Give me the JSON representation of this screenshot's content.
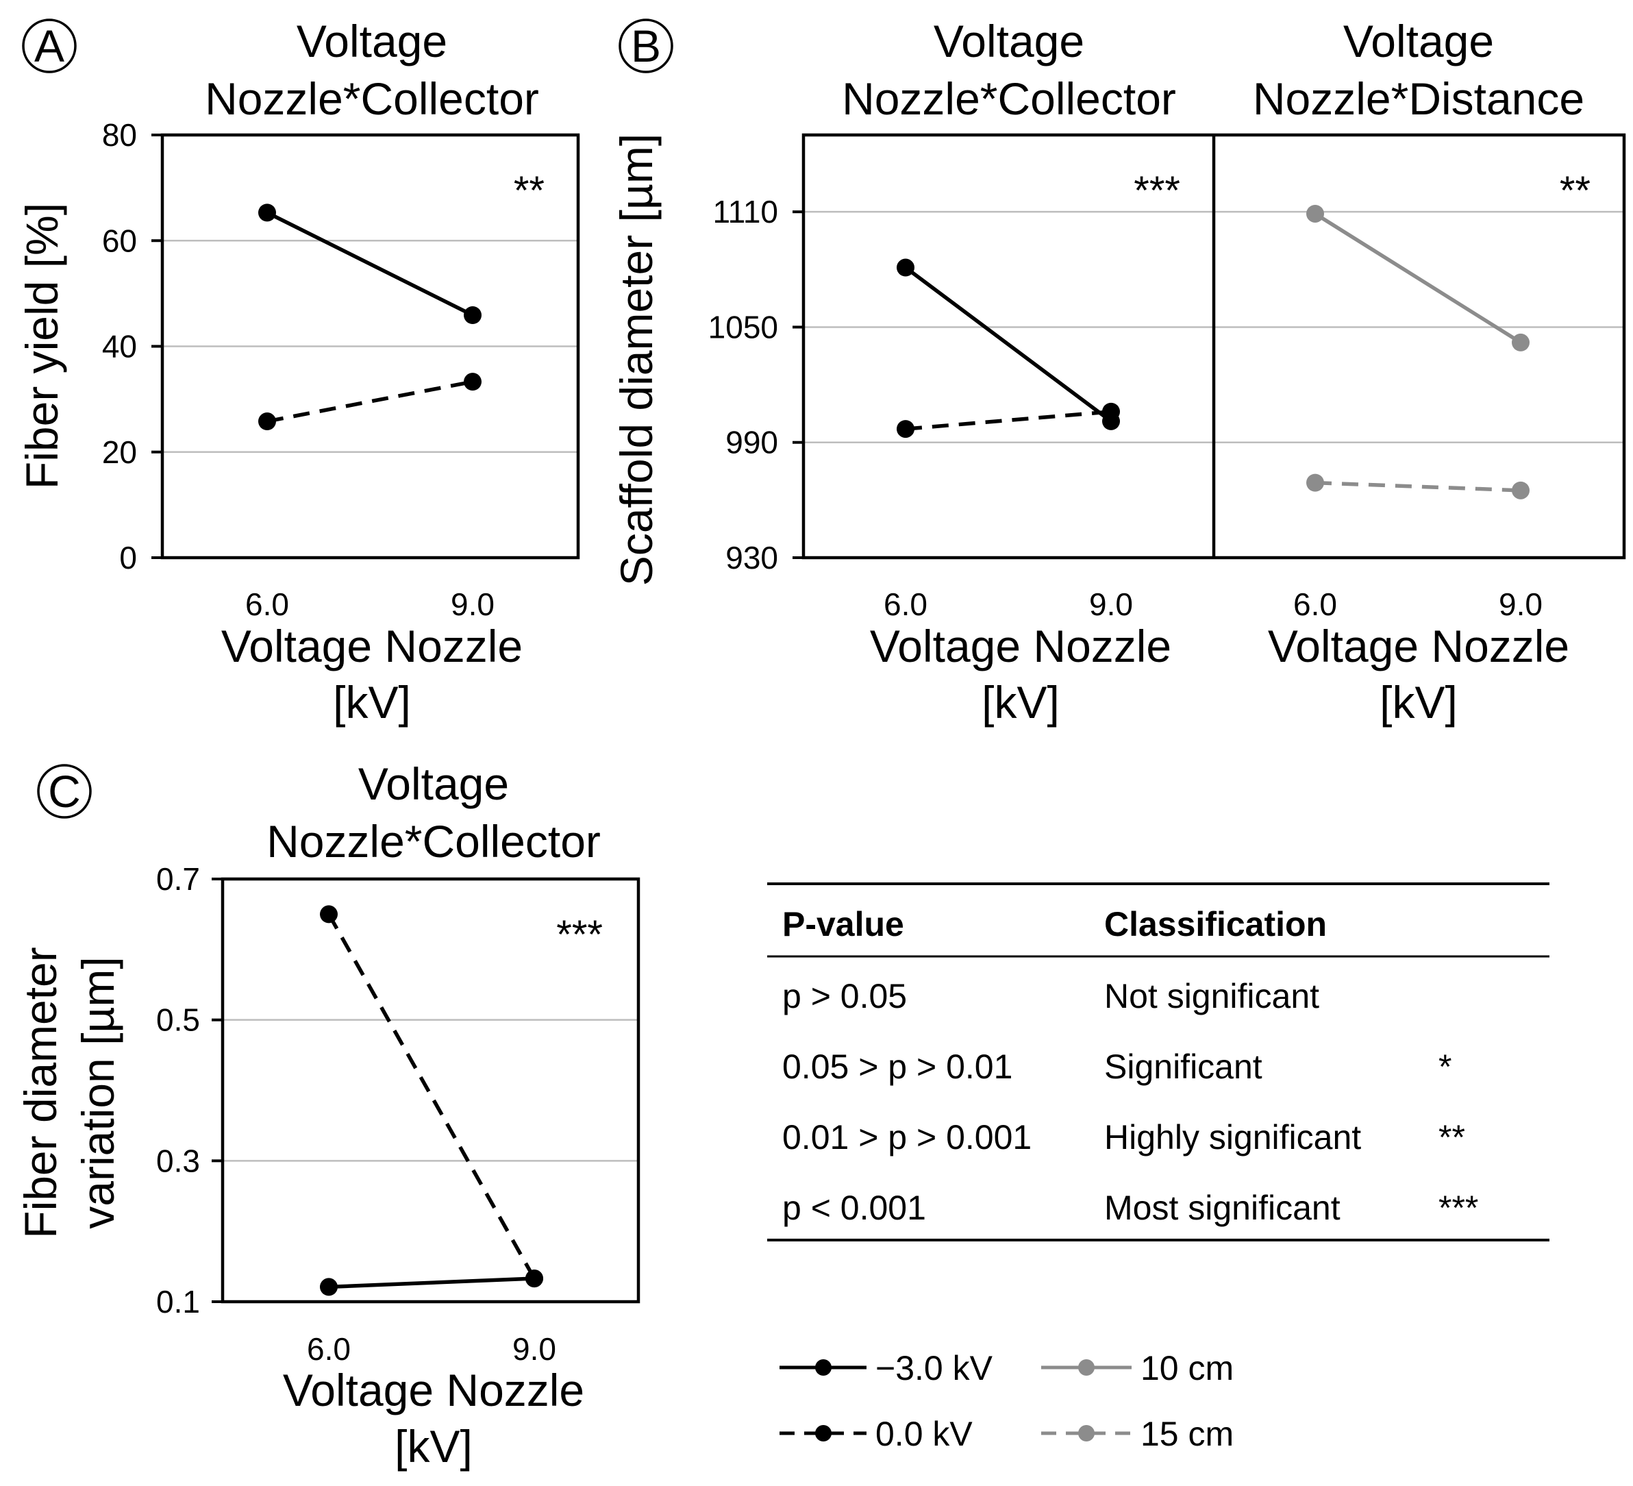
{
  "chart_data": [
    {
      "id": "A",
      "badge": "A",
      "type": "line",
      "title_lines": [
        "Voltage",
        "Nozzle*Collector"
      ],
      "xlabel_lines": [
        "Voltage Nozzle",
        "[kV]"
      ],
      "ylabel_lines": [
        "Fiber yield [%]"
      ],
      "categories": [
        "6.0",
        "9.0"
      ],
      "ylim": [
        0,
        80
      ],
      "yticks": [
        "0",
        "20",
        "40",
        "60",
        "80"
      ],
      "grid": true,
      "significance": "**",
      "series": [
        {
          "name": "−3.0 kV",
          "style": "solid",
          "color": "#000000",
          "values": [
            65.3,
            45.9
          ]
        },
        {
          "name": "0.0 kV",
          "style": "dashed",
          "color": "#000000",
          "values": [
            25.8,
            33.3
          ]
        }
      ]
    },
    {
      "id": "B1",
      "badge": "B",
      "type": "line",
      "title_lines": [
        "Voltage",
        "Nozzle*Collector"
      ],
      "xlabel_lines": [
        "Voltage Nozzle",
        "[kV]"
      ],
      "ylabel_lines": [
        "Scaffold diameter [µm]"
      ],
      "categories": [
        "6.0",
        "9.0"
      ],
      "ylim": [
        930,
        1150
      ],
      "yticks": [
        "930",
        "990",
        "1050",
        "1110"
      ],
      "grid": true,
      "significance": "***",
      "series": [
        {
          "name": "−3.0 kV",
          "style": "solid",
          "color": "#000000",
          "values": [
            1081,
            1001
          ]
        },
        {
          "name": "0.0 kV",
          "style": "dashed",
          "color": "#000000",
          "values": [
            997,
            1006
          ]
        }
      ]
    },
    {
      "id": "B2",
      "type": "line",
      "title_lines": [
        "Voltage",
        "Nozzle*Distance"
      ],
      "xlabel_lines": [
        "Voltage Nozzle",
        "[kV]"
      ],
      "categories": [
        "6.0",
        "9.0"
      ],
      "ylim": [
        930,
        1150
      ],
      "grid": true,
      "significance": "**",
      "series": [
        {
          "name": "10 cm",
          "style": "solid",
          "color": "#8c8c8c",
          "values": [
            1109,
            1042
          ]
        },
        {
          "name": "15 cm",
          "style": "dashed",
          "color": "#8c8c8c",
          "values": [
            969,
            965
          ]
        }
      ]
    },
    {
      "id": "C",
      "badge": "C",
      "type": "line",
      "title_lines": [
        "Voltage",
        "Nozzle*Collector"
      ],
      "xlabel_lines": [
        "Voltage Nozzle",
        "[kV]"
      ],
      "ylabel_lines": [
        "Fiber diameter",
        "variation [µm]"
      ],
      "categories": [
        "6.0",
        "9.0"
      ],
      "ylim": [
        0.1,
        0.7
      ],
      "yticks": [
        "0.1",
        "0.3",
        "0.5",
        "0.7"
      ],
      "grid": true,
      "significance": "***",
      "series": [
        {
          "name": "−3.0 kV",
          "style": "solid",
          "color": "#000000",
          "values": [
            0.121,
            0.133
          ]
        },
        {
          "name": "0.0 kV",
          "style": "dashed",
          "color": "#000000",
          "values": [
            0.65,
            0.133
          ]
        }
      ]
    }
  ],
  "table": {
    "headers": [
      "P-value",
      "Classification"
    ],
    "rows": [
      {
        "p": "p > 0.05",
        "classification": "Not significant",
        "stars": ""
      },
      {
        "p": "0.05 > p > 0.01",
        "classification": "Significant",
        "stars": "*"
      },
      {
        "p": "0.01 > p > 0.001",
        "classification": "Highly significant",
        "stars": "**"
      },
      {
        "p": "p < 0.001",
        "classification": "Most significant",
        "stars": "***"
      }
    ]
  },
  "legend": [
    {
      "label": "−3.0 kV",
      "style": "solid",
      "color": "#000000"
    },
    {
      "label": "0.0 kV",
      "style": "dashed",
      "color": "#000000"
    },
    {
      "label": "10 cm",
      "style": "solid",
      "color": "#8c8c8c"
    },
    {
      "label": "15 cm",
      "style": "dashed",
      "color": "#8c8c8c"
    }
  ]
}
